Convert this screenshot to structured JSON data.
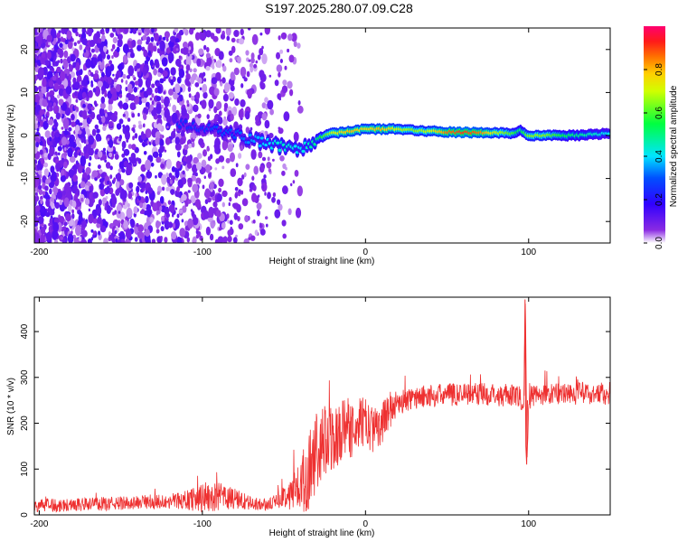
{
  "title": "S197.2025.280.07.09.C28",
  "chart_data": [
    {
      "type": "heatmap",
      "xlabel": "Height of straight line (km)",
      "ylabel": "Frequency (Hz)",
      "xlim": [
        -203,
        150
      ],
      "ylim": [
        -25,
        25
      ],
      "xticks": [
        -200,
        -100,
        0,
        100
      ],
      "yticks": [
        -20,
        -10,
        0,
        10,
        20
      ],
      "colorbar": {
        "label": "Normalized spectral amplitude",
        "range": [
          0,
          1
        ],
        "ticks": [
          "0.0",
          "0.2",
          "0.4",
          "0.6",
          "0.8"
        ],
        "tick_values": [
          0.0,
          0.2,
          0.4,
          0.6,
          0.8
        ],
        "colors": [
          "#ffffff",
          "#6a00ff",
          "#0000ff",
          "#00ffff",
          "#00ff00",
          "#ffff00",
          "#ff8000",
          "#ff0000",
          "#ff0080"
        ]
      },
      "ridge": {
        "description": "frequency of peak spectral amplitude vs height",
        "x": [
          -112,
          -100,
          -90,
          -80,
          -70,
          -60,
          -50,
          -40,
          -35,
          -30,
          -25,
          -20,
          -10,
          0,
          10,
          20,
          30,
          40,
          50,
          60,
          70,
          80,
          90,
          95,
          100,
          110,
          120,
          130,
          140,
          150
        ],
        "y": [
          3,
          2,
          1,
          0.5,
          -1,
          -2,
          -2.5,
          -3,
          -2,
          -1,
          0,
          0.5,
          1,
          1.5,
          1.5,
          1.5,
          1.2,
          1,
          0.8,
          0.7,
          0.7,
          0.6,
          0.5,
          1.2,
          0,
          0,
          0,
          0,
          0.3,
          0.5
        ],
        "amplitude": [
          0.25,
          0.25,
          0.3,
          0.3,
          0.35,
          0.4,
          0.45,
          0.4,
          0.45,
          0.5,
          0.6,
          0.7,
          0.8,
          0.75,
          0.8,
          0.7,
          0.65,
          0.7,
          0.85,
          0.9,
          0.85,
          0.7,
          0.6,
          0.5,
          0.65,
          0.65,
          0.55,
          0.5,
          0.45,
          0.4
        ]
      }
    },
    {
      "type": "line",
      "xlabel": "Height of straight line (km)",
      "ylabel": "SNR (10 * v/v)",
      "xlim": [
        -203,
        150
      ],
      "ylim": [
        0,
        475
      ],
      "xticks": [
        -200,
        -100,
        0,
        100
      ],
      "yticks": [
        0,
        100,
        200,
        300,
        400
      ],
      "color": "#ee3030",
      "series": [
        {
          "name": "SNR",
          "x": [
            -203,
            -180,
            -160,
            -140,
            -120,
            -110,
            -100,
            -90,
            -80,
            -70,
            -60,
            -55,
            -50,
            -45,
            -40,
            -35,
            -30,
            -25,
            -20,
            -15,
            -10,
            -5,
            0,
            5,
            10,
            15,
            20,
            25,
            30,
            40,
            50,
            60,
            70,
            80,
            90,
            95,
            97,
            98,
            99,
            100,
            102,
            110,
            120,
            130,
            140,
            150
          ],
          "y": [
            20,
            22,
            24,
            27,
            30,
            33,
            38,
            40,
            35,
            25,
            22,
            30,
            40,
            50,
            60,
            100,
            130,
            150,
            170,
            180,
            190,
            200,
            200,
            185,
            200,
            230,
            245,
            250,
            255,
            260,
            262,
            265,
            265,
            262,
            260,
            255,
            230,
            470,
            120,
            230,
            262,
            262,
            265,
            265,
            265,
            265
          ],
          "spread": [
            15,
            15,
            15,
            15,
            18,
            20,
            35,
            30,
            25,
            15,
            12,
            15,
            25,
            40,
            60,
            90,
            90,
            90,
            80,
            70,
            70,
            60,
            55,
            50,
            45,
            40,
            30,
            25,
            25,
            25,
            25,
            25,
            25,
            25,
            25,
            25,
            25,
            5,
            5,
            25,
            25,
            25,
            25,
            25,
            25,
            25
          ]
        }
      ]
    }
  ]
}
